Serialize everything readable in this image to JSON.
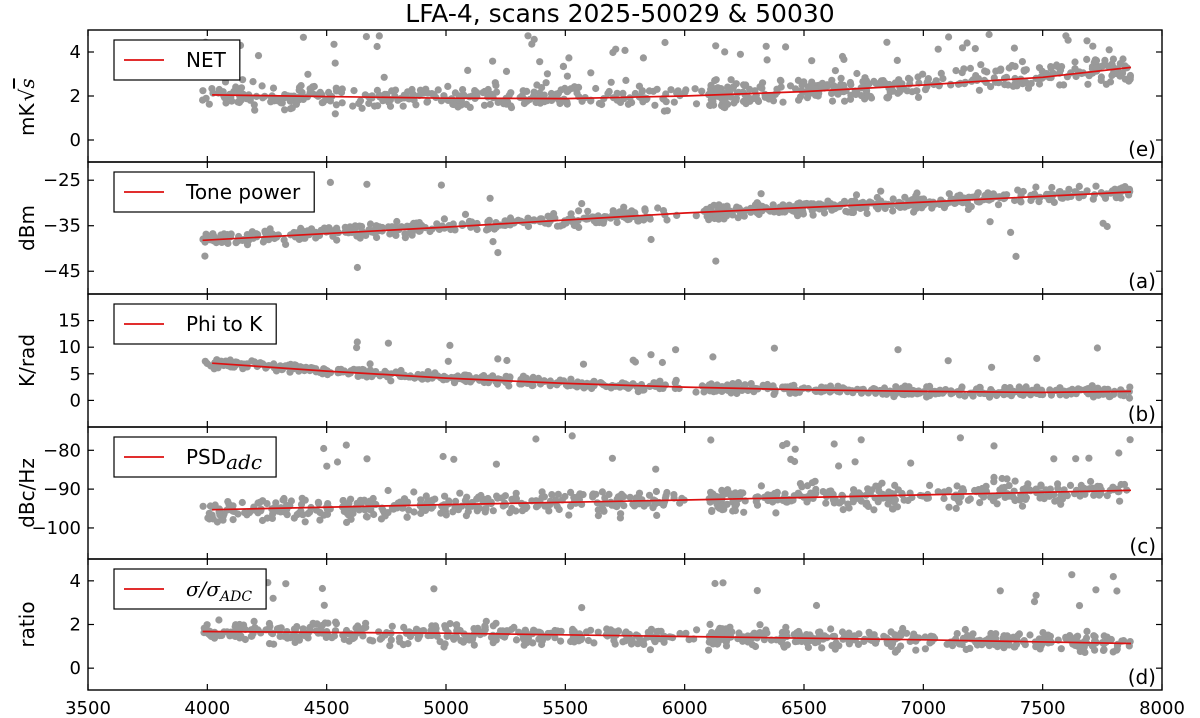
{
  "chart_data": {
    "title": "LFA-4, scans 2025-50029 & 50030",
    "type": "scatter",
    "xlim": [
      3500,
      8000
    ],
    "xticks": [
      "3500",
      "4000",
      "4500",
      "5000",
      "5500",
      "6000",
      "6500",
      "7000",
      "7500",
      "8000"
    ],
    "colors": {
      "points": "#999999",
      "fit": "#dd1111"
    },
    "panels": [
      {
        "id": "e",
        "tag": "(e)",
        "ylabel": "mK",
        "ylabel_sqrt": "s",
        "ylim": [
          -1,
          5
        ],
        "yticks": [
          0,
          2,
          4
        ],
        "ytick_labels": [
          "0",
          "2",
          "4"
        ],
        "legend": {
          "plain": "NET",
          "sub": ""
        },
        "fit": {
          "x": [
            4020,
            5000,
            5500,
            6000,
            6500,
            7000,
            7500,
            7870
          ],
          "y": [
            2.05,
            1.9,
            1.88,
            2.0,
            2.2,
            2.5,
            2.85,
            3.3
          ]
        },
        "scatter": {
          "trend": [
            [
              3980,
              2.0
            ],
            [
              4500,
              1.95
            ],
            [
              5200,
              1.9
            ],
            [
              6000,
              2.0
            ],
            [
              6800,
              2.4
            ],
            [
              7870,
              3.3
            ]
          ],
          "spread": 0.6,
          "outlier_rate": 0.12,
          "outlier_range": [
            2.5,
            4.8
          ],
          "clip": [
            1.1,
            5.0
          ],
          "seed": 11
        }
      },
      {
        "id": "a",
        "tag": "(a)",
        "ylabel": "dBm",
        "ylim": [
          -50,
          -21
        ],
        "yticks": [
          -45,
          -35,
          -25
        ],
        "ytick_labels": [
          "−45",
          "−35",
          "−25"
        ],
        "legend": {
          "plain": "Tone power",
          "sub": ""
        },
        "fit": {
          "x": [
            3980,
            5000,
            6000,
            7000,
            7870
          ],
          "y": [
            -38.2,
            -35.3,
            -32.2,
            -29.8,
            -27.6
          ]
        },
        "scatter": {
          "trend": [
            [
              3980,
              -38
            ],
            [
              5000,
              -35.3
            ],
            [
              6000,
              -32.3
            ],
            [
              7000,
              -29.9
            ],
            [
              7870,
              -27.6
            ]
          ],
          "spread": 1.5,
          "outlier_rate": 0.03,
          "outlier_range": [
            -47,
            -24
          ],
          "clip": [
            -48,
            -22
          ],
          "seed": 23
        }
      },
      {
        "id": "b",
        "tag": "(b)",
        "ylabel": "K/rad",
        "ylim": [
          -5,
          20
        ],
        "yticks": [
          0,
          5,
          10,
          15
        ],
        "ytick_labels": [
          "0",
          "5",
          "10",
          "15"
        ],
        "legend": {
          "plain": "Phi to K",
          "sub": ""
        },
        "fit": {
          "x": [
            4020,
            4500,
            5000,
            5500,
            6000,
            6500,
            7000,
            7500,
            7870
          ],
          "y": [
            7.0,
            5.5,
            4.2,
            3.2,
            2.5,
            2.0,
            1.7,
            1.5,
            1.7
          ]
        },
        "scatter": {
          "trend": [
            [
              3980,
              7.2
            ],
            [
              4500,
              5.5
            ],
            [
              5000,
              4.2
            ],
            [
              5500,
              3.2
            ],
            [
              6000,
              2.5
            ],
            [
              6500,
              2.0
            ],
            [
              7000,
              1.7
            ],
            [
              7870,
              1.7
            ]
          ],
          "spread": 0.9,
          "outlier_rate": 0.04,
          "outlier_range": [
            6,
            11
          ],
          "clip": [
            -1,
            19
          ],
          "seed": 37
        }
      },
      {
        "id": "c",
        "tag": "(c)",
        "ylabel": "dBc/Hz",
        "ylim": [
          -108,
          -74
        ],
        "yticks": [
          -100,
          -90,
          -80
        ],
        "ytick_labels": [
          "−100",
          "−90",
          "−80"
        ],
        "legend": {
          "plain": "PSD",
          "sub": "adc"
        },
        "fit": {
          "x": [
            4020,
            5000,
            6000,
            7000,
            7870
          ],
          "y": [
            -95.3,
            -94.0,
            -92.8,
            -91.5,
            -90.3
          ]
        },
        "scatter": {
          "trend": [
            [
              3980,
              -96
            ],
            [
              5000,
              -94
            ],
            [
              6000,
              -92.8
            ],
            [
              7000,
              -91.5
            ],
            [
              7870,
              -90.3
            ]
          ],
          "spread": 3.0,
          "outlier_rate": 0.06,
          "outlier_range": [
            -86,
            -76
          ],
          "clip": [
            -103,
            -74
          ],
          "seed": 53
        }
      },
      {
        "id": "d",
        "tag": "(d)",
        "ylabel": "ratio",
        "ylim": [
          -1,
          5
        ],
        "yticks": [
          0,
          2,
          4
        ],
        "ytick_labels": [
          "0",
          "2",
          "4"
        ],
        "legend": {
          "plain": "",
          "sub": "",
          "math": "σ/σ",
          "math_sub": "ADC"
        },
        "fit": {
          "x": [
            3980,
            5000,
            6000,
            7000,
            7870
          ],
          "y": [
            1.68,
            1.6,
            1.45,
            1.3,
            1.13
          ]
        },
        "scatter": {
          "trend": [
            [
              3980,
              1.7
            ],
            [
              5000,
              1.55
            ],
            [
              6000,
              1.45
            ],
            [
              7000,
              1.3
            ],
            [
              7870,
              1.13
            ]
          ],
          "spread": 0.45,
          "outlier_rate": 0.04,
          "outlier_range": [
            2.5,
            4.4
          ],
          "clip": [
            0.3,
            4.6
          ],
          "seed": 71
        }
      }
    ]
  }
}
